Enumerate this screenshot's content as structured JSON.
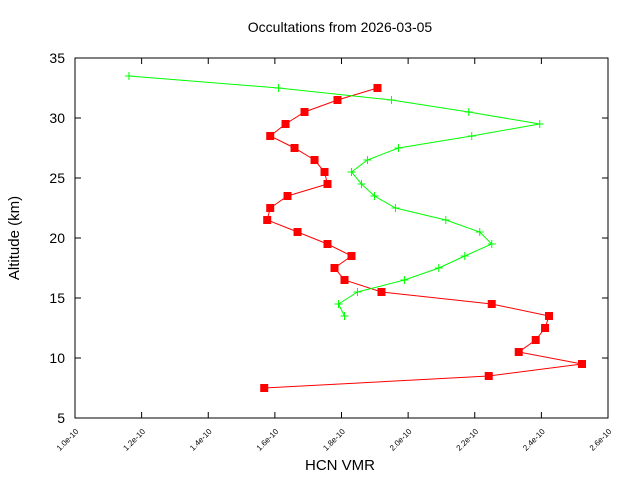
{
  "chart_data": {
    "type": "line",
    "title": "Occultations from 2026-03-05",
    "xlabel": "HCN VMR",
    "ylabel": "Altitude (km)",
    "xlim": [
      1e-10,
      2.6e-10
    ],
    "ylim": [
      5,
      35
    ],
    "x_ticks": [
      "1.0e-10",
      "1.2e-10",
      "1.4e-10",
      "1.6e-10",
      "1.8e-10",
      "2.0e-10",
      "2.2e-10",
      "2.4e-10",
      "2.6e-10"
    ],
    "x_tick_values": [
      1e-10,
      1.2e-10,
      1.4e-10,
      1.6e-10,
      1.8e-10,
      2e-10,
      2.2e-10,
      2.4e-10,
      2.6e-10
    ],
    "y_ticks": [
      "5",
      "10",
      "15",
      "20",
      "25",
      "30",
      "35"
    ],
    "y_tick_values": [
      5,
      10,
      15,
      20,
      25,
      30,
      35
    ],
    "grid": false,
    "series": [
      {
        "name": "red-squares",
        "color": "#ff0000",
        "marker": "square",
        "altitude": [
          32.5,
          31.5,
          30.5,
          29.5,
          28.5,
          27.5,
          26.5,
          25.5,
          24.5,
          23.5,
          22.5,
          21.5,
          20.5,
          19.5,
          18.5,
          17.5,
          16.5,
          15.5,
          14.5,
          13.5,
          12.5,
          11.5,
          10.5,
          9.5,
          8.5,
          7.5
        ],
        "vmr": [
          1.908e-10,
          1.788e-10,
          1.689e-10,
          1.632e-10,
          1.586e-10,
          1.659e-10,
          1.719e-10,
          1.749e-10,
          1.758e-10,
          1.638e-10,
          1.586e-10,
          1.577e-10,
          1.668e-10,
          1.758e-10,
          1.83e-10,
          1.779e-10,
          1.809e-10,
          1.92e-10,
          2.251e-10,
          2.423e-10,
          2.411e-10,
          2.383e-10,
          2.332e-10,
          2.522e-10,
          2.242e-10,
          1.568e-10
        ]
      },
      {
        "name": "green-plus",
        "color": "#00ff00",
        "marker": "plus",
        "altitude": [
          33.5,
          32.5,
          31.5,
          30.5,
          29.5,
          28.5,
          27.5,
          26.5,
          25.5,
          24.5,
          23.5,
          22.5,
          21.5,
          20.5,
          19.5,
          18.5,
          17.5,
          16.5,
          15.5,
          14.5,
          13.5
        ],
        "vmr": [
          1.162e-10,
          1.611e-10,
          1.95e-10,
          2.182e-10,
          2.395e-10,
          2.191e-10,
          1.971e-10,
          1.878e-10,
          1.83e-10,
          1.86e-10,
          1.899e-10,
          1.962e-10,
          2.113e-10,
          2.215e-10,
          2.251e-10,
          2.17e-10,
          2.092e-10,
          1.989e-10,
          1.848e-10,
          1.791e-10,
          1.809e-10
        ]
      }
    ]
  }
}
